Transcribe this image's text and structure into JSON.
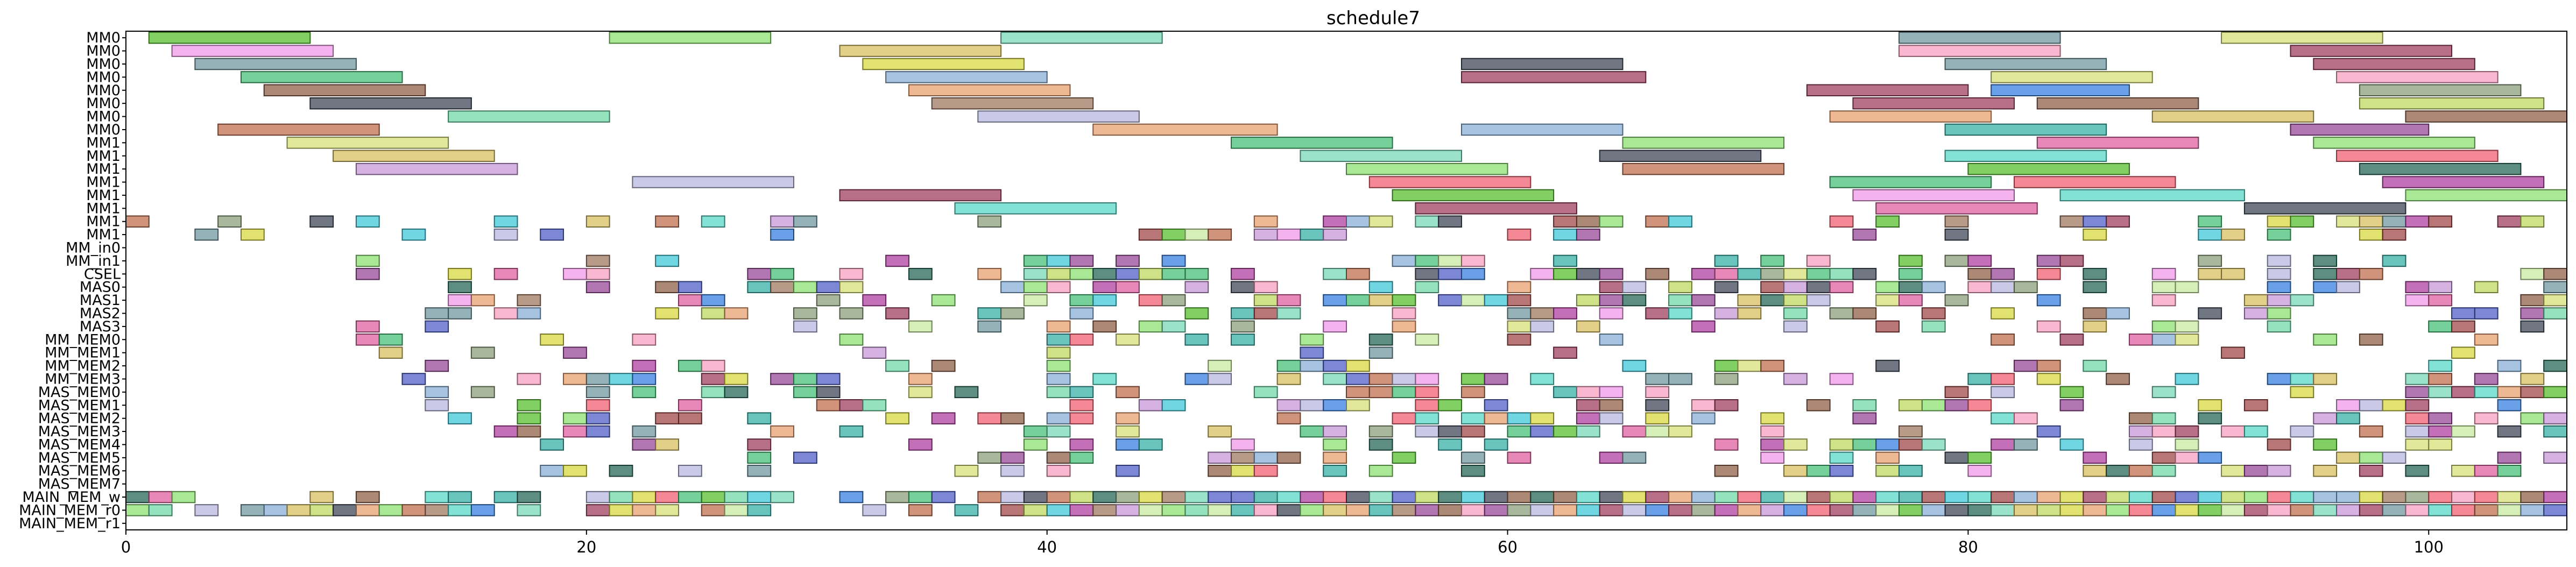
{
  "chart_data": {
    "type": "gantt",
    "title": "schedule7",
    "xlim": [
      0,
      106
    ],
    "xticks": [
      0,
      20,
      40,
      60,
      80,
      100
    ],
    "xlabel": "",
    "ylabel": "",
    "grid": false,
    "rows": [
      "MM0",
      "MM0",
      "MM0",
      "MM0",
      "MM0",
      "MM0",
      "MM0",
      "MM0",
      "MM1",
      "MM1",
      "MM1",
      "MM1",
      "MM1",
      "MM1",
      "MM1",
      "MM1",
      "MM_in0",
      "MM_in1",
      "CSEL",
      "MAS0",
      "MAS1",
      "MAS2",
      "MAS3",
      "MM_MEM0",
      "MM_MEM1",
      "MM_MEM2",
      "MM_MEM3",
      "MAS_MEM0",
      "MAS_MEM1",
      "MAS_MEM2",
      "MAS_MEM3",
      "MAS_MEM4",
      "MAS_MEM5",
      "MAS_MEM6",
      "MAS_MEM7",
      "MAIN_MEM_w",
      "MAIN_MEM_r0",
      "MAIN_MEM_r1"
    ],
    "palette": [
      "#70d8a8",
      "#88b0d8",
      "#a04060",
      "#5060c8",
      "#c0d860",
      "#984898",
      "#404858",
      "#d8d840",
      "#b040a0",
      "#40c8d8",
      "#8ce070",
      "#38b0a8",
      "#286858",
      "#48c078",
      "#c898d8",
      "#58d8c8",
      "#8ca07c",
      "#f098e8",
      "#7ad8b8",
      "#f06070",
      "#58c030",
      "#3880e0",
      "#d8e078",
      "#a04848",
      "#b8b8e0",
      "#e8a070",
      "#e060a0",
      "#906048",
      "#c07050",
      "#d8c060",
      "#a07860",
      "#f8a0c0",
      "#c8e8a0",
      "#7098a0"
    ],
    "row_bars": [
      [
        [
          1,
          8
        ],
        [
          21,
          28
        ],
        [
          38,
          45
        ],
        [
          77,
          84
        ],
        [
          91,
          98
        ]
      ],
      [
        [
          2,
          9
        ],
        [
          31,
          38
        ],
        [
          77,
          84
        ],
        [
          94,
          101
        ]
      ],
      [
        [
          3,
          10
        ],
        [
          32,
          39
        ],
        [
          58,
          65
        ],
        [
          79,
          86
        ],
        [
          95,
          102
        ]
      ],
      [
        [
          5,
          12
        ],
        [
          33,
          40
        ],
        [
          58,
          66
        ],
        [
          81,
          88
        ],
        [
          96,
          103
        ]
      ],
      [
        [
          6,
          13
        ],
        [
          34,
          41
        ],
        [
          73,
          80
        ],
        [
          81,
          87
        ],
        [
          97,
          104
        ]
      ],
      [
        [
          8,
          15
        ],
        [
          35,
          42
        ],
        [
          75,
          82
        ],
        [
          83,
          90
        ],
        [
          97,
          105
        ]
      ],
      [
        [
          14,
          21
        ],
        [
          37,
          44
        ],
        [
          74,
          81
        ],
        [
          88,
          95
        ],
        [
          99,
          106
        ]
      ],
      [
        [
          4,
          11
        ],
        [
          42,
          50
        ],
        [
          58,
          65
        ],
        [
          79,
          86
        ],
        [
          94,
          100
        ]
      ],
      [
        [
          7,
          14
        ],
        [
          48,
          55
        ],
        [
          65,
          72
        ],
        [
          83,
          90
        ],
        [
          95,
          102
        ]
      ],
      [
        [
          9,
          16
        ],
        [
          51,
          58
        ],
        [
          64,
          71
        ],
        [
          79,
          86
        ],
        [
          96,
          103
        ]
      ],
      [
        [
          10,
          17
        ],
        [
          53,
          60
        ],
        [
          65,
          72
        ],
        [
          80,
          87
        ],
        [
          97,
          104
        ]
      ],
      [
        [
          22,
          29
        ],
        [
          54,
          61
        ],
        [
          74,
          81
        ],
        [
          82,
          89
        ],
        [
          98,
          105
        ]
      ],
      [
        [
          31,
          38
        ],
        [
          55,
          62
        ],
        [
          75,
          82
        ],
        [
          84,
          92
        ],
        [
          99,
          106
        ]
      ],
      [
        [
          36,
          43
        ],
        [
          56,
          63
        ],
        [
          76,
          83
        ],
        [
          92,
          99
        ]
      ]
    ],
    "cell_rows_start": 14,
    "cell_density": [
      0.32,
      0.2,
      0.0,
      0.25,
      0.45,
      0.45,
      0.45,
      0.32,
      0.3,
      0.28,
      0.12,
      0.32,
      0.38,
      0.36,
      0.38,
      0.34,
      0.38,
      0.3,
      0.28,
      0.3,
      0.0,
      0.95,
      0.95
    ],
    "cell_xmin": [
      0,
      3,
      0,
      10,
      10,
      10,
      10,
      10,
      10,
      10,
      10,
      10,
      12,
      12,
      12,
      14,
      14,
      18,
      18,
      18,
      0,
      0,
      0
    ]
  }
}
